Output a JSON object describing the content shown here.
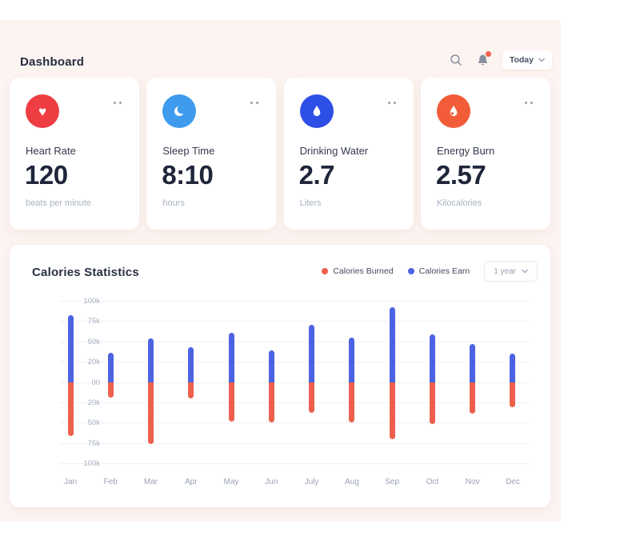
{
  "header": {
    "title": "Dashboard",
    "period": "Today"
  },
  "colors": {
    "panel_bg": "#fcf4f1",
    "notification_dot": "#f0634a",
    "icon_gray": "#868e9e",
    "bar_blue": "#4c63e2",
    "bar_red": "#ec604c"
  },
  "cards": [
    {
      "label": "Heart Rate",
      "value": "120",
      "unit": "beats per minute",
      "icon": "heart-icon",
      "icon_color": "#ee3d43"
    },
    {
      "label": "Sleep Time",
      "value": "8:10",
      "unit": "hours",
      "icon": "moon-icon",
      "icon_color": "#3f9bee"
    },
    {
      "label": "Drinking Water",
      "value": "2.7",
      "unit": "Liters",
      "icon": "droplet-icon",
      "icon_color": "#2e4fe6"
    },
    {
      "label": "Energy Burn",
      "value": "2.57",
      "unit": "Kilocalories",
      "icon": "flame-icon",
      "icon_color": "#f25c38"
    }
  ],
  "chart": {
    "title": "Calories Statistics",
    "range": "1 year",
    "legend": [
      {
        "label": "Calories Burned",
        "color": "#ec604c"
      },
      {
        "label": "Calories Earn",
        "color": "#4c63e2"
      }
    ]
  },
  "chart_data": {
    "type": "bar",
    "diverging": true,
    "title": "Calories Statistics",
    "categories": [
      "Jan",
      "Feb",
      "Mar",
      "Apr",
      "May",
      "Jun",
      "July",
      "Aug",
      "Sep",
      "Oct",
      "Nov",
      "Dec"
    ],
    "y_ticks": [
      "100k",
      "75k",
      "50k",
      "20k",
      "00",
      "20k",
      "50k",
      "75k",
      "100k"
    ],
    "y_scale_anchors_k": [
      0,
      20,
      50,
      75,
      100
    ],
    "ylim_k": [
      -100,
      100
    ],
    "grid": "dotted-horizontal",
    "series": [
      {
        "name": "Calories Earn",
        "color": "#4c63e2",
        "direction": "up",
        "values_k": [
          82,
          33,
          54,
          42,
          61,
          37,
          70,
          55,
          92,
          59,
          46,
          32
        ]
      },
      {
        "name": "Calories Burned",
        "color": "#ec604c",
        "direction": "down",
        "values_k": [
          66,
          15,
          76,
          16,
          48,
          50,
          35,
          50,
          70,
          52,
          37,
          27
        ]
      }
    ]
  }
}
